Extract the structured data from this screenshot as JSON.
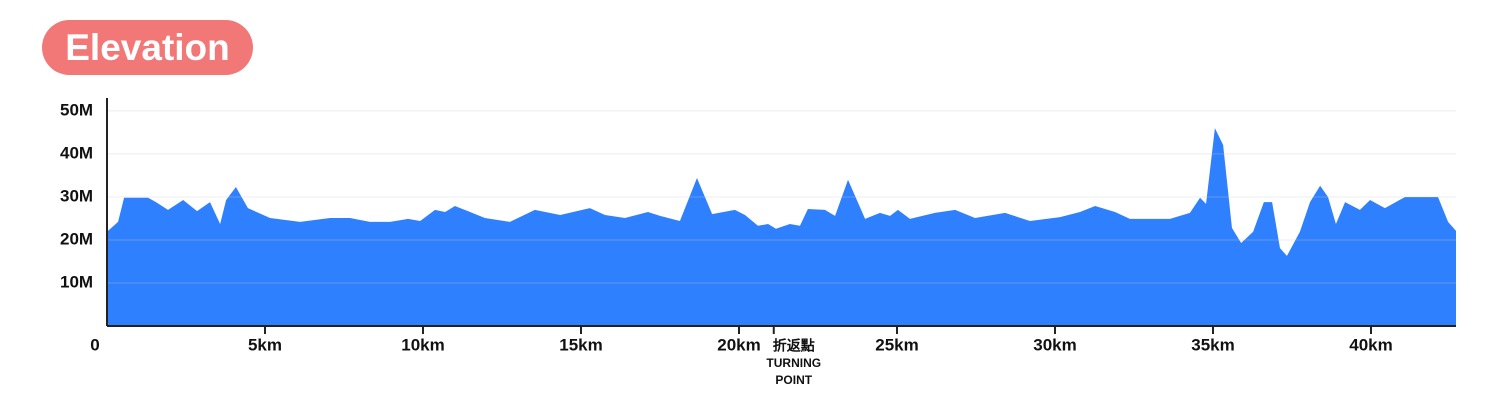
{
  "chart_data": {
    "type": "area",
    "title": "Elevation",
    "x": [
      0,
      0.35,
      0.54,
      1.3,
      1.55,
      1.93,
      2.41,
      2.85,
      3.26,
      3.58,
      3.77,
      4.08,
      4.46,
      5.16,
      6.11,
      7.06,
      7.69,
      8.32,
      8.96,
      9.53,
      9.91,
      10.38,
      10.7,
      11.01,
      11.49,
      11.96,
      12.75,
      13.54,
      14.34,
      15.28,
      15.76,
      16.39,
      17.12,
      17.5,
      18.13,
      18.67,
      19.15,
      19.87,
      20.19,
      20.6,
      20.92,
      21.17,
      21.61,
      21.93,
      22.18,
      22.72,
      23.04,
      23.45,
      23.99,
      24.46,
      24.78,
      25.03,
      25.41,
      26.2,
      26.84,
      27.47,
      28.42,
      29.21,
      30.16,
      30.79,
      31.27,
      31.9,
      32.37,
      33.01,
      33.64,
      34.27,
      34.59,
      34.78,
      35.06,
      35.32,
      35.6,
      35.89,
      36.27,
      36.61,
      36.87,
      37.12,
      37.34,
      37.75,
      38.07,
      38.39,
      38.64,
      38.89,
      39.18,
      39.65,
      39.97,
      40.44,
      41.08,
      42.12,
      42.44,
      42.69
    ],
    "values": [
      21.9,
      24.2,
      29.8,
      29.8,
      28.8,
      27,
      29.3,
      26.7,
      28.8,
      23.7,
      29.3,
      32.3,
      27.4,
      25.1,
      24.2,
      25.1,
      25.1,
      24.2,
      24.2,
      24.9,
      24.4,
      27,
      26.5,
      27.9,
      26.5,
      25.1,
      24.2,
      27,
      25.8,
      27.4,
      25.8,
      25.1,
      26.5,
      25.6,
      24.4,
      34.4,
      26,
      27,
      25.8,
      23.3,
      23.7,
      22.6,
      23.7,
      23.3,
      27.2,
      27,
      25.6,
      34,
      24.9,
      26.3,
      25.6,
      27,
      24.9,
      26.3,
      27,
      25.1,
      26.3,
      24.4,
      25.3,
      26.5,
      27.9,
      26.5,
      24.9,
      24.9,
      24.9,
      26.3,
      29.8,
      28.4,
      46,
      42.1,
      22.8,
      19.3,
      21.9,
      28.8,
      28.8,
      18.1,
      16.3,
      21.9,
      28.8,
      32.6,
      30,
      23.7,
      28.8,
      27,
      29.3,
      27.4,
      30,
      30,
      24.2,
      22.1
    ],
    "color": "#2f80ff",
    "xlim": [
      0,
      42.69
    ],
    "ylim": [
      0,
      53
    ],
    "xticks": [
      0,
      {
        "value": 5,
        "label": "5km"
      },
      {
        "value": 10,
        "label": "10km"
      },
      {
        "value": 15,
        "label": "15km"
      },
      {
        "value": 20,
        "label": "20km"
      },
      {
        "value": 25,
        "label": "25km"
      },
      {
        "value": 30,
        "label": "30km"
      },
      {
        "value": 35,
        "label": "35km"
      },
      {
        "value": 40,
        "label": "40km"
      }
    ],
    "yticks": [
      {
        "value": 10,
        "label": "10M"
      },
      {
        "value": 20,
        "label": "20M"
      },
      {
        "value": 30,
        "label": "30M"
      },
      {
        "value": 40,
        "label": "40M"
      },
      {
        "value": 50,
        "label": "50M"
      }
    ],
    "grid": true,
    "annotation": {
      "x": 21.1,
      "lines": [
        "折返點",
        "TURNING",
        "POINT"
      ]
    }
  }
}
